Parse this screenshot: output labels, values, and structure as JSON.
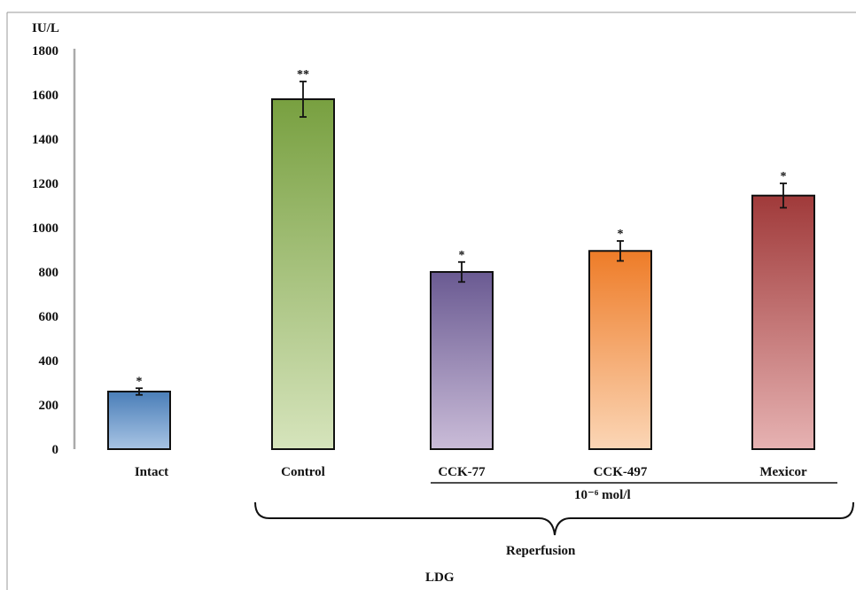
{
  "chart_data": {
    "type": "bar",
    "title": "",
    "ylabel": "IU/L",
    "xlabel": "LDG",
    "ylim": [
      0,
      1800
    ],
    "yticks": [
      0,
      200,
      400,
      600,
      800,
      1000,
      1200,
      1400,
      1600,
      1800
    ],
    "grid": false,
    "categories": [
      "Intact",
      "Control",
      "CCK-77",
      "CCK-497",
      "Mexicor"
    ],
    "values": [
      260,
      1580,
      800,
      895,
      1145
    ],
    "errors": [
      15,
      80,
      45,
      45,
      55
    ],
    "significance": [
      "*",
      "**",
      "*",
      "*",
      "*"
    ],
    "colors": {
      "top": [
        "#4a7eb8",
        "#78a040",
        "#6a5a92",
        "#ee7c28",
        "#a03a3a"
      ],
      "bottom": [
        "#a8c4e4",
        "#d6e4bc",
        "#cabcd8",
        "#fbd6b6",
        "#e6b2b2"
      ]
    },
    "annotations": {
      "concentration": "10⁻⁶ mol/l",
      "reperfusion": "Reperfusion"
    }
  }
}
